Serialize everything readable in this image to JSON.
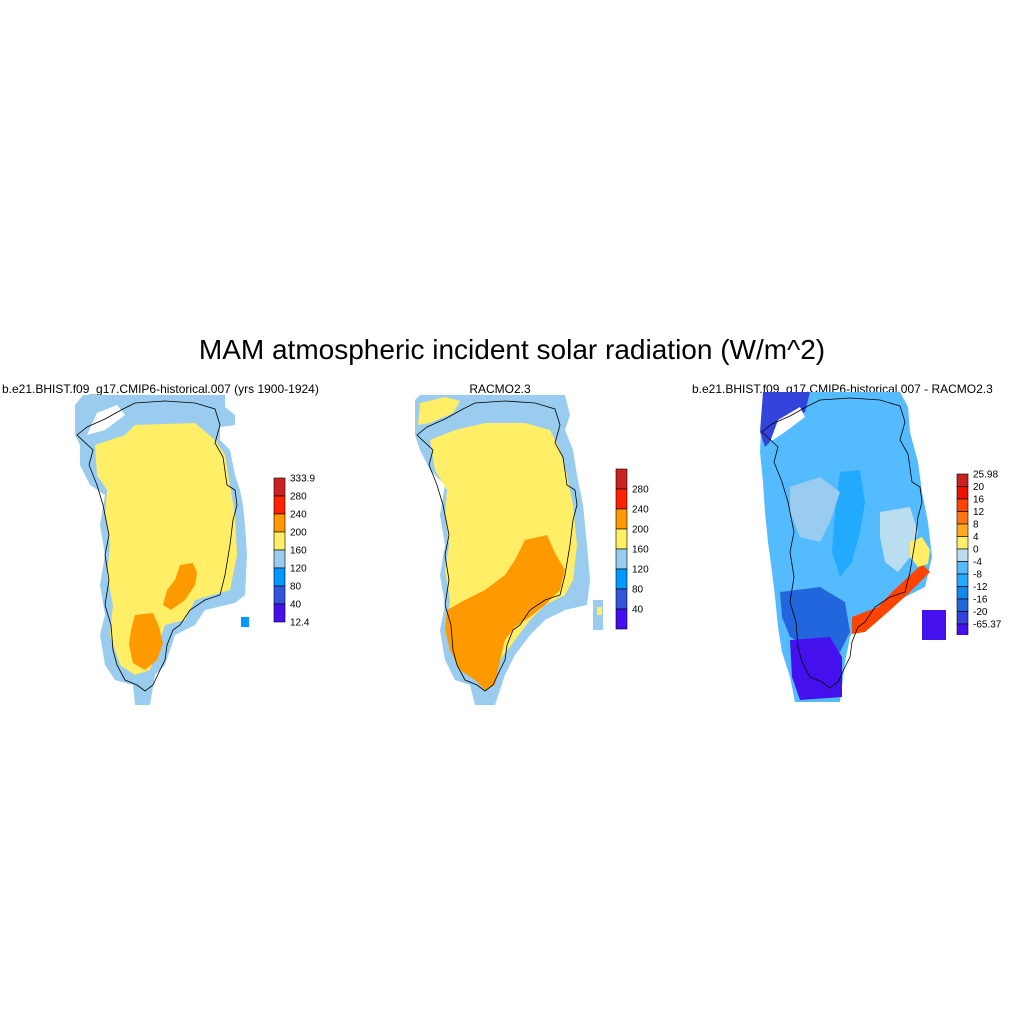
{
  "figure": {
    "title": "MAM atmospheric incident solar radiation (W/m^2)"
  },
  "panels": [
    {
      "title": "b.e21.BHIST.f09_g17.CMIP6-historical.007 (yrs 1900-1924)",
      "colorbar": {
        "labels": [
          "333.9",
          "280",
          "240",
          "200",
          "160",
          "120",
          "80",
          "40",
          "12.4"
        ],
        "colors": [
          "#cc2222",
          "#ff2200",
          "#ff9900",
          "#ffee66",
          "#99ccee",
          "#0099ff",
          "#3355dd",
          "#4411ee"
        ]
      }
    },
    {
      "title": "RACMO2.3",
      "colorbar": {
        "labels": [
          "280",
          "240",
          "200",
          "160",
          "120",
          "80",
          "40"
        ],
        "colors": [
          "#cc2222",
          "#ff2200",
          "#ff9900",
          "#ffee66",
          "#99ccee",
          "#0099ff",
          "#3355dd",
          "#4411ee"
        ]
      }
    },
    {
      "title": "b.e21.BHIST.f09_g17.CMIP6-historical.007 - RACMO2.3",
      "colorbar": {
        "labels": [
          "25.98",
          "20",
          "16",
          "12",
          "8",
          "4",
          "0",
          "-4",
          "-8",
          "-12",
          "-16",
          "-20",
          "-65.37"
        ],
        "colors": [
          "#cc2222",
          "#ee1100",
          "#ff4400",
          "#ff7711",
          "#ffaa22",
          "#ffee66",
          "#bbddf0",
          "#55bbff",
          "#22aaff",
          "#1188ee",
          "#2266dd",
          "#3344dd",
          "#4411ee"
        ]
      }
    }
  ]
}
